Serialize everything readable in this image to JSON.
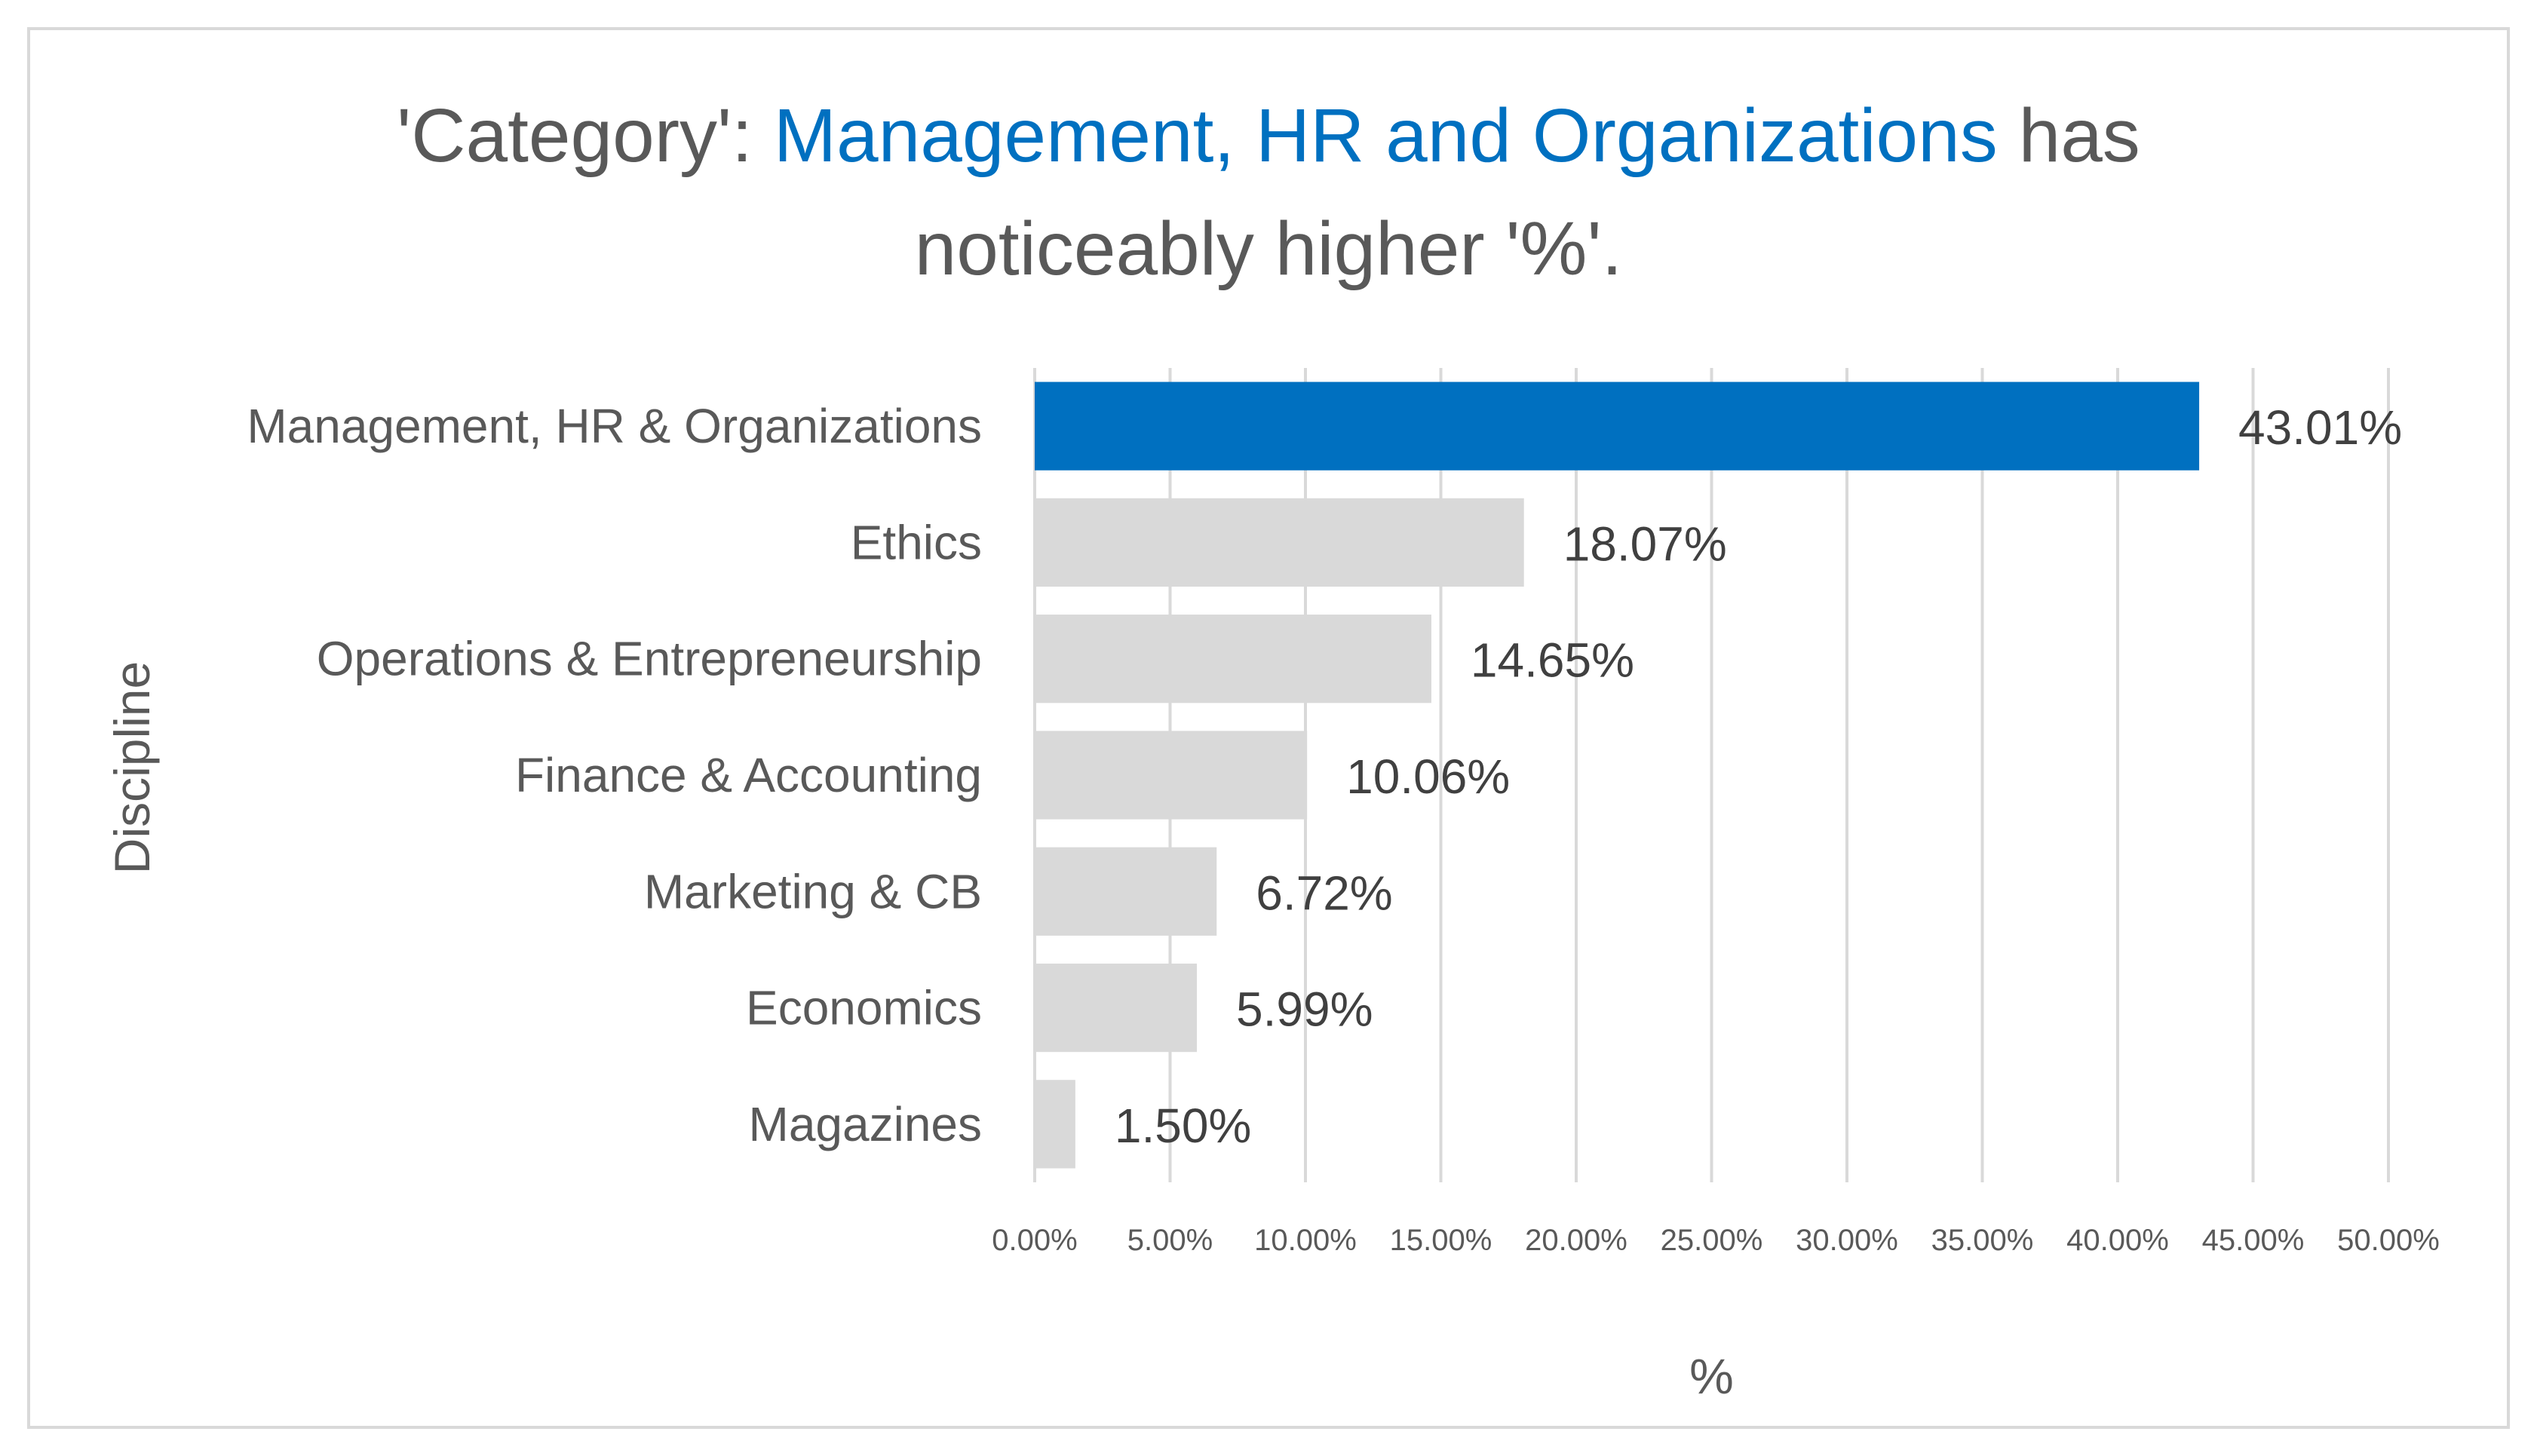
{
  "chart_data": {
    "type": "bar",
    "orientation": "horizontal",
    "title": {
      "prefix": "'Category': ",
      "highlight": "Management, HR and Organizations",
      "suffix": " has",
      "line2": "noticeably higher '%'."
    },
    "categories": [
      "Management, HR & Organizations",
      "Ethics",
      "Operations & Entrepreneurship",
      "Finance & Accounting",
      "Marketing & CB",
      "Economics",
      "Magazines"
    ],
    "values": [
      43.01,
      18.07,
      14.65,
      10.06,
      6.72,
      5.99,
      1.5
    ],
    "value_labels": [
      "43.01%",
      "18.07%",
      "14.65%",
      "10.06%",
      "6.72%",
      "5.99%",
      "1.50%"
    ],
    "highlight_index": 0,
    "xlabel": "%",
    "ylabel": "Discipline",
    "xlim": [
      0,
      50
    ],
    "xticks": [
      0,
      5,
      10,
      15,
      20,
      25,
      30,
      35,
      40,
      45,
      50
    ],
    "xtick_labels": [
      "0.00%",
      "5.00%",
      "10.00%",
      "15.00%",
      "20.00%",
      "25.00%",
      "30.00%",
      "35.00%",
      "40.00%",
      "45.00%",
      "50.00%"
    ],
    "grid": true,
    "colors": {
      "highlight": "#0070c0",
      "default": "#d9d9d9",
      "grid": "#d9d9d9"
    }
  }
}
